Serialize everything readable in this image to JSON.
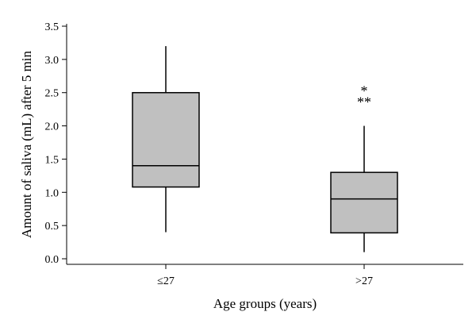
{
  "chart_data": {
    "type": "box",
    "title": "",
    "xlabel": "Age groups (years)",
    "ylabel": "Amount of saliva (mL) after 5 min",
    "ylim": [
      0.0,
      3.5
    ],
    "yticks": [
      "0.0",
      "0.5",
      "1.0",
      "1.5",
      "2.0",
      "2.5",
      "3.0",
      "3.5"
    ],
    "categories": [
      "≤27",
      ">27"
    ],
    "boxes": [
      {
        "category": "≤27",
        "min": 0.4,
        "q1": 1.08,
        "median": 1.4,
        "q3": 2.5,
        "max": 3.2,
        "outlier_markers": []
      },
      {
        "category": ">27",
        "min": 0.1,
        "q1": 0.39,
        "median": 0.9,
        "q3": 1.3,
        "max": 2.0,
        "outlier_markers": [
          {
            "symbol": "*",
            "value": 2.6
          },
          {
            "symbol": "**",
            "value": 2.43
          }
        ]
      }
    ],
    "box_fill": "#c0c0c0",
    "line_color": "#000000",
    "grid": false
  }
}
